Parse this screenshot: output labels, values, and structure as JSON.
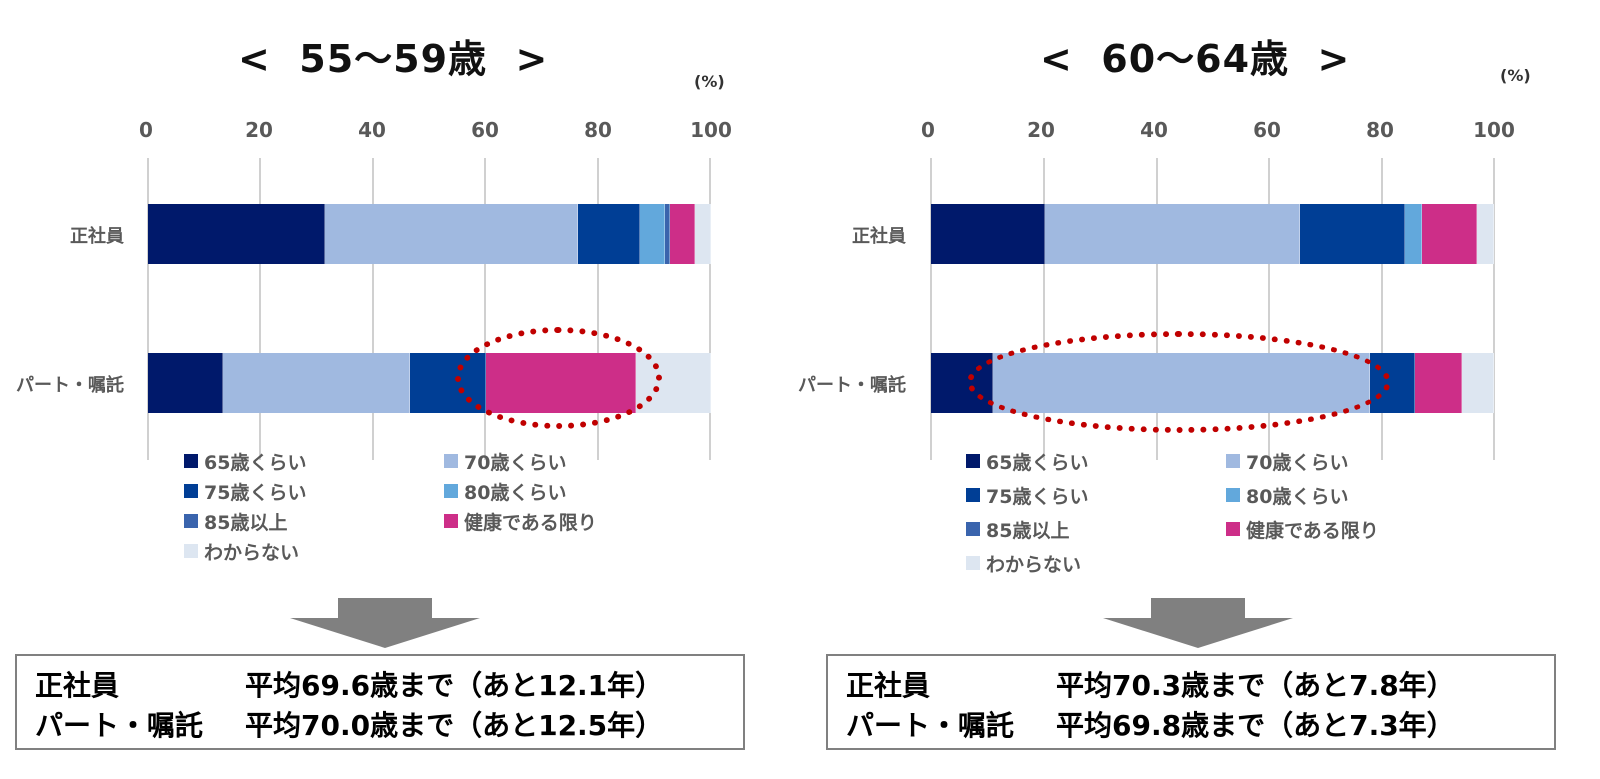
{
  "legend": [
    {
      "label": "65歳くらい",
      "color": "#00196b"
    },
    {
      "label": "70歳くらい",
      "color": "#a0b9e0"
    },
    {
      "label": "75歳くらい",
      "color": "#003e95"
    },
    {
      "label": "80歳くらい",
      "color": "#62a8dc"
    },
    {
      "label": "85歳以上",
      "color": "#3a64ad"
    },
    {
      "label": "健康である限り",
      "color": "#cd2e88"
    },
    {
      "label": "わからない",
      "color": "#dde6f1"
    }
  ],
  "left": {
    "title": "<  55〜59歳  >",
    "unit": "(%)",
    "ticks": [
      "0",
      "20",
      "40",
      "60",
      "80",
      "100"
    ],
    "categories": [
      "正社員",
      "パート・嘱託"
    ],
    "summary": [
      {
        "label": "正社員",
        "text": "平均69.6歳まで（あと12.1年）"
      },
      {
        "label": "パート・嘱託",
        "text": "平均70.0歳まで（あと12.5年）"
      }
    ]
  },
  "right": {
    "title": "<  60〜64歳  >",
    "unit": "(%)",
    "ticks": [
      "0",
      "20",
      "40",
      "60",
      "80",
      "100"
    ],
    "categories": [
      "正社員",
      "パート・嘱託"
    ],
    "summary": [
      {
        "label": "正社員",
        "text": "平均70.3歳まで（あと7.8年）"
      },
      {
        "label": "パート・嘱託",
        "text": "平均69.8歳まで（あと7.3年）"
      }
    ]
  },
  "chart_data": [
    {
      "type": "bar",
      "orientation": "horizontal",
      "stacked": true,
      "title": "< 55〜59歳 >",
      "xlabel": "(%)",
      "xlim": [
        0,
        100
      ],
      "xticks": [
        0,
        20,
        40,
        60,
        80,
        100
      ],
      "grid": true,
      "legend_position": "bottom",
      "categories": [
        "正社員",
        "パート・嘱託"
      ],
      "series": [
        {
          "name": "65歳くらい",
          "values": [
            31.4,
            13.3
          ]
        },
        {
          "name": "70歳くらい",
          "values": [
            45.0,
            33.3
          ]
        },
        {
          "name": "75歳くらい",
          "values": [
            11.0,
            13.4
          ]
        },
        {
          "name": "80歳くらい",
          "values": [
            4.4,
            0.0
          ]
        },
        {
          "name": "85歳以上",
          "values": [
            1.0,
            0.0
          ]
        },
        {
          "name": "健康である限り",
          "values": [
            4.4,
            26.7
          ]
        },
        {
          "name": "わからない",
          "values": [
            2.8,
            13.3
          ]
        }
      ],
      "annotations": [
        "パート・嘱託の「健康である限り」を赤い点線の楕円で強調"
      ]
    },
    {
      "type": "bar",
      "orientation": "horizontal",
      "stacked": true,
      "title": "< 60〜64歳 >",
      "xlabel": "(%)",
      "xlim": [
        0,
        100
      ],
      "xticks": [
        0,
        20,
        40,
        60,
        80,
        100
      ],
      "grid": true,
      "legend_position": "bottom",
      "categories": [
        "正社員",
        "パート・嘱託"
      ],
      "series": [
        {
          "name": "65歳くらい",
          "values": [
            20.3,
            11.0
          ]
        },
        {
          "name": "70歳くらい",
          "values": [
            45.3,
            66.9
          ]
        },
        {
          "name": "75歳くらい",
          "values": [
            18.6,
            8.1
          ]
        },
        {
          "name": "80歳くらい",
          "values": [
            3.1,
            0.0
          ]
        },
        {
          "name": "85歳以上",
          "values": [
            0.0,
            0.0
          ]
        },
        {
          "name": "健康である限り",
          "values": [
            9.6,
            8.3
          ]
        },
        {
          "name": "わからない",
          "values": [
            3.1,
            5.7
          ]
        }
      ],
      "annotations": [
        "パート・嘱託の「70歳くらい」を赤い点線の楕円で強調"
      ]
    }
  ]
}
